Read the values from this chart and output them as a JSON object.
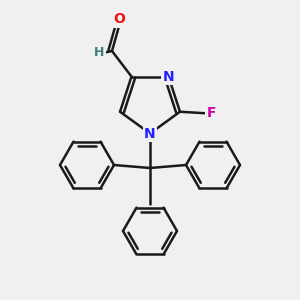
{
  "background_color": "#f0f0f0",
  "bond_color": "#1a1a1a",
  "bond_width": 1.8,
  "N_color": "#2222ff",
  "O_color": "#ee1111",
  "F_color": "#cc00aa",
  "H_color": "#3a8080",
  "figsize": [
    3.0,
    3.0
  ],
  "dpi": 100,
  "xlim": [
    0,
    10
  ],
  "ylim": [
    0,
    10
  ]
}
